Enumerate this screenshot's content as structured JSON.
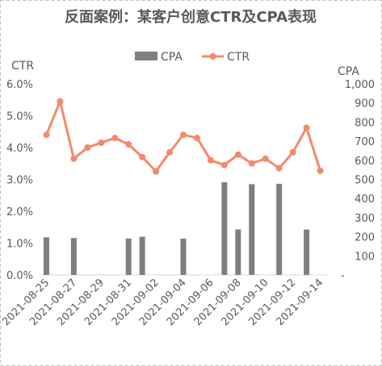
{
  "chart_data": {
    "type": "bar+line",
    "title": "反面案例：某客户创意CTR及CPA表现",
    "left_axis_label": "CTR",
    "right_axis_label": "CPA",
    "left_ticks": [
      "0.0%",
      "1.0%",
      "2.0%",
      "3.0%",
      "4.0%",
      "5.0%",
      "6.0%"
    ],
    "right_ticks": [
      "-",
      "100",
      "200",
      "300",
      "400",
      "500",
      "600",
      "700",
      "800",
      "900",
      "1,000"
    ],
    "left_ylim": [
      0,
      6
    ],
    "right_ylim": [
      0,
      1000
    ],
    "x_tick_labels": [
      "2021-08-25",
      "2021-08-27",
      "2021-08-29",
      "2021-08-31",
      "2021-09-02",
      "2021-09-04",
      "2021-09-06",
      "2021-09-08",
      "2021-09-10",
      "2021-09-12",
      "2021-09-14"
    ],
    "categories": [
      "2021-08-25",
      "2021-08-26",
      "2021-08-27",
      "2021-08-28",
      "2021-08-29",
      "2021-08-30",
      "2021-08-31",
      "2021-09-01",
      "2021-09-02",
      "2021-09-03",
      "2021-09-04",
      "2021-09-05",
      "2021-09-06",
      "2021-09-07",
      "2021-09-08",
      "2021-09-09",
      "2021-09-10",
      "2021-09-11",
      "2021-09-12",
      "2021-09-13",
      "2021-09-14"
    ],
    "series": [
      {
        "name": "CPA",
        "type": "bar",
        "axis": "right",
        "color": "#7f7f7f",
        "values": [
          197,
          0,
          193,
          0,
          0,
          0,
          190,
          200,
          0,
          0,
          190,
          0,
          0,
          485,
          238,
          475,
          0,
          477,
          0,
          237,
          0
        ]
      },
      {
        "name": "CTR",
        "type": "line",
        "axis": "left",
        "color": "#f4896b",
        "values": [
          4.4,
          5.45,
          3.65,
          4.0,
          4.15,
          4.3,
          4.1,
          3.7,
          3.25,
          3.85,
          4.4,
          4.3,
          3.6,
          3.45,
          3.78,
          3.5,
          3.65,
          3.35,
          3.85,
          4.62,
          3.27
        ]
      }
    ],
    "legend_position": "top-center",
    "grid": false
  }
}
